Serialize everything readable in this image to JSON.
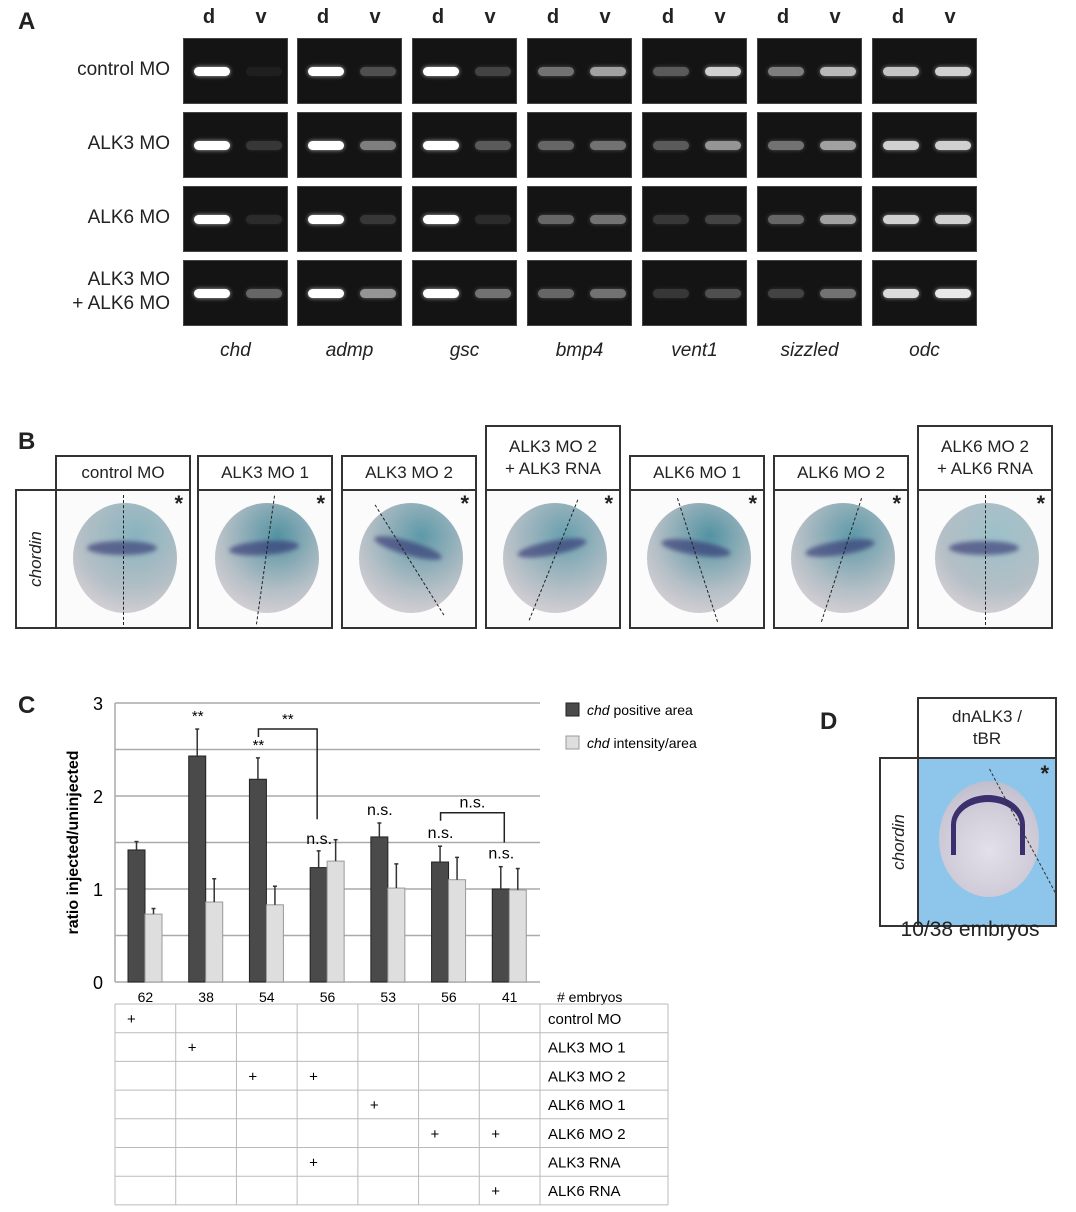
{
  "panel_a": {
    "label": "A",
    "lane_labels": [
      "d",
      "v"
    ],
    "rows": [
      "control MO",
      "ALK3 MO",
      "ALK6 MO",
      "ALK3 MO\n+ ALK6 MO"
    ],
    "genes": [
      "chd",
      "admp",
      "gsc",
      "bmp4",
      "vent1",
      "sizzled",
      "odc"
    ]
  },
  "panel_b": {
    "label": "B",
    "row_label": "chordin",
    "columns": [
      "control MO",
      "ALK3 MO 1",
      "ALK3 MO 2",
      "ALK3 MO 2\n+ ALK3 RNA",
      "ALK6 MO 1",
      "ALK6 MO 2",
      "ALK6 MO 2\n+ ALK6 RNA"
    ],
    "marker": "*"
  },
  "panel_c": {
    "label": "C",
    "colors": {
      "positive_area": "#4a4a4a",
      "intensity": "#dedede"
    },
    "n_label": "# embryos",
    "table_rows": [
      {
        "label": "control MO",
        "marks": [
          1,
          0,
          0,
          0,
          0,
          0,
          0
        ]
      },
      {
        "label": "ALK3 MO 1",
        "marks": [
          0,
          1,
          0,
          0,
          0,
          0,
          0
        ]
      },
      {
        "label": "ALK3 MO 2",
        "marks": [
          0,
          0,
          1,
          1,
          0,
          0,
          0
        ]
      },
      {
        "label": "ALK6 MO 1",
        "marks": [
          0,
          0,
          0,
          0,
          1,
          0,
          0
        ]
      },
      {
        "label": "ALK6 MO 2",
        "marks": [
          0,
          0,
          0,
          0,
          0,
          1,
          1
        ]
      },
      {
        "label": "ALK3 RNA",
        "marks": [
          0,
          0,
          0,
          1,
          0,
          0,
          0
        ]
      },
      {
        "label": "ALK6 RNA",
        "marks": [
          0,
          0,
          0,
          0,
          0,
          0,
          1
        ]
      }
    ],
    "mark_symbol": "+"
  },
  "chart_data": {
    "type": "bar",
    "ylabel": "ratio injected/uninjected",
    "ylim": [
      0,
      3
    ],
    "yticks": [
      0,
      1,
      2,
      3
    ],
    "grid": true,
    "legend_position": "right",
    "categories": [
      "62",
      "38",
      "54",
      "56",
      "53",
      "56",
      "41"
    ],
    "series": [
      {
        "name_italic": "chd",
        "name": " positive area",
        "values": [
          1.42,
          2.43,
          2.18,
          1.23,
          1.56,
          1.29,
          1.0
        ],
        "errors": [
          0.09,
          0.29,
          0.23,
          0.18,
          0.15,
          0.17,
          0.24
        ]
      },
      {
        "name_italic": "chd",
        "name": " intensity/area",
        "values": [
          0.73,
          0.86,
          0.83,
          1.3,
          1.01,
          1.1,
          0.99
        ],
        "errors": [
          0.06,
          0.25,
          0.2,
          0.23,
          0.26,
          0.24,
          0.23
        ]
      }
    ],
    "annotations": [
      {
        "group": 1,
        "text": "**"
      },
      {
        "group": 2,
        "text": "**"
      },
      {
        "group": 3,
        "text": "n.s."
      },
      {
        "group": 4,
        "text": "n.s."
      },
      {
        "group": 5,
        "text": "n.s."
      },
      {
        "group": 6,
        "text": "n.s."
      }
    ],
    "brackets": [
      {
        "from": 2,
        "to": 3,
        "text": "**"
      },
      {
        "from": 5,
        "to": 6,
        "text": "n.s."
      }
    ]
  },
  "panel_d": {
    "label": "D",
    "column": "dnALK3 /\ntBR",
    "row_label": "chordin",
    "marker": "*",
    "caption": "10/38 embryos"
  }
}
